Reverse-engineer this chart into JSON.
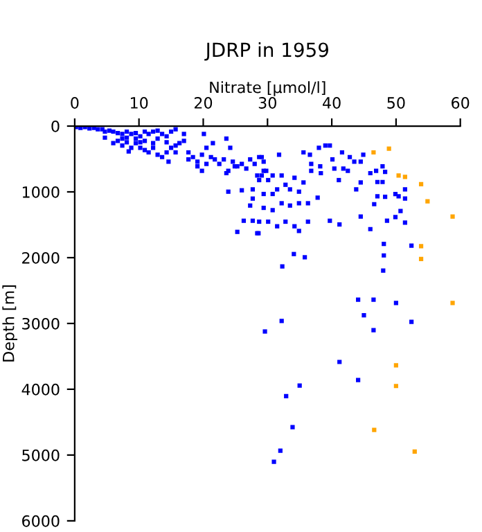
{
  "chart_data": {
    "type": "scatter",
    "title": "JDRP in 1959",
    "xlabel": "Nitrate [µmol/l]",
    "ylabel": "Depth [m]",
    "marker": "square",
    "grid": false,
    "legend": false,
    "xlim": [
      0,
      60
    ],
    "xticks": [
      0,
      10,
      20,
      30,
      40,
      50,
      60
    ],
    "ylim": [
      6000,
      0
    ],
    "yticks": [
      0,
      1000,
      2000,
      3000,
      4000,
      5000,
      6000
    ],
    "series": [
      {
        "color": "#0000ff",
        "x": [
          0.2,
          0.9,
          1.6,
          2.3,
          3.0,
          3.6,
          4.3,
          4.7,
          5.4,
          6.0,
          6.7,
          7.4,
          8.1,
          8.8,
          9.5,
          10.2,
          10.9,
          11.5,
          12.2,
          12.9,
          13.6,
          14.3,
          15.0,
          15.7,
          4.7,
          6.0,
          6.7,
          7.4,
          8.1,
          8.8,
          8.4,
          9.5,
          10.2,
          10.9,
          11.5,
          12.2,
          12.9,
          13.6,
          14.3,
          14.6,
          15.0,
          15.7,
          16.3,
          17.0,
          17.7,
          18.4,
          19.1,
          19.8,
          20.1,
          20.5,
          21.2,
          21.5,
          21.8,
          22.5,
          23.2,
          23.6,
          23.9,
          24.2,
          24.6,
          25.3,
          26.0,
          26.7,
          27.3,
          28.0,
          28.4,
          28.7,
          29.1,
          29.4,
          23.6,
          23.9,
          26.0,
          27.7,
          27.3,
          27.7,
          26.3,
          25.3,
          27.7,
          28.6,
          24.9,
          19.8,
          20.5,
          17.7,
          19.1,
          12.9,
          14.3,
          17.0,
          15.7,
          9.5,
          10.9,
          12.2,
          8.1,
          7.4,
          10.2,
          28.7,
          29.4,
          29.1,
          29.8,
          30.1,
          30.8,
          31.5,
          32.2,
          32.8,
          33.5,
          34.2,
          34.9,
          35.6,
          29.4,
          30.8,
          32.2,
          33.5,
          34.9,
          36.3,
          29.4,
          30.8,
          28.7,
          30.1,
          31.5,
          32.8,
          34.2,
          34.9,
          28.4,
          36.3,
          31.8,
          35.6,
          36.6,
          38.0,
          39.0,
          39.7,
          36.8,
          38.2,
          36.8,
          38.3,
          40.1,
          40.4,
          41.6,
          42.8,
          41.8,
          41.1,
          42.5,
          43.5,
          44.5,
          44.9,
          43.8,
          44.5,
          46.0,
          46.9,
          47.9,
          48.3,
          47.1,
          47.9,
          37.8,
          39.7,
          41.2,
          44.5,
          46.0,
          46.6,
          47.1,
          48.3,
          48.6,
          49.9,
          50.4,
          51.4,
          51.4,
          50.7,
          51.4,
          49.9,
          52.4,
          48.1,
          48.1,
          34.1,
          35.8,
          32.3,
          48.0,
          44.1,
          46.5,
          50.0,
          45.0,
          52.4,
          46.5,
          32.2,
          29.6,
          41.2,
          44.1,
          35.0,
          32.9,
          33.9,
          32.0,
          31.0
        ],
        "values": [
          14,
          28,
          14,
          35,
          28,
          49,
          49,
          84,
          70,
          84,
          106,
          120,
          84,
          120,
          106,
          155,
          84,
          120,
          84,
          70,
          120,
          155,
          84,
          49,
          176,
          260,
          225,
          190,
          246,
          330,
          386,
          260,
          330,
          365,
          400,
          330,
          435,
          471,
          400,
          541,
          330,
          295,
          260,
          225,
          400,
          471,
          541,
          435,
          120,
          330,
          471,
          260,
          506,
          576,
          506,
          190,
          681,
          330,
          541,
          611,
          576,
          646,
          506,
          576,
          751,
          821,
          471,
          681,
          716,
          997,
          976,
          962,
          1208,
          1102,
          1439,
          1608,
          1439,
          1629,
          611,
          681,
          576,
          506,
          611,
          190,
          246,
          120,
          400,
          190,
          225,
          260,
          176,
          295,
          246,
          471,
          541,
          751,
          681,
          821,
          751,
          962,
          751,
          892,
          962,
          786,
          997,
          857,
          1032,
          1032,
          1173,
          1208,
          1173,
          1173,
          1243,
          1278,
          1453,
          1453,
          1523,
          1453,
          1523,
          1594,
          1629,
          1453,
          435,
          400,
          435,
          330,
          295,
          295,
          576,
          611,
          681,
          716,
          506,
          646,
          400,
          471,
          646,
          821,
          681,
          541,
          541,
          435,
          962,
          857,
          716,
          681,
          611,
          695,
          850,
          850,
          1088,
          1439,
          1495,
          1376,
          1566,
          1187,
          1067,
          1074,
          1439,
          1032,
          1067,
          962,
          1102,
          1292,
          1467,
          1383,
          1818,
          1790,
          1966,
          1945,
          1994,
          2133,
          2196,
          2638,
          2638,
          2688,
          2876,
          2975,
          3101,
          2962,
          3122,
          3585,
          3860,
          3944,
          4105,
          4575,
          4933,
          5102
        ]
      },
      {
        "color": "#ffa500",
        "x": [
          46.5,
          48.9,
          50.4,
          51.4,
          53.9,
          54.9,
          58.8,
          53.9,
          53.9,
          58.8,
          50.0,
          50.0,
          46.6,
          52.9
        ],
        "values": [
          400,
          343,
          751,
          772,
          884,
          1144,
          1375,
          1825,
          2021,
          2688,
          3636,
          3951,
          4617,
          4947
        ]
      }
    ]
  }
}
